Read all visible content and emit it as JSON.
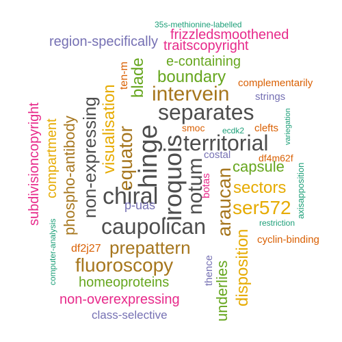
{
  "palette": {
    "gray": "#4d4d4d",
    "gold": "#e6ab02",
    "bronze": "#a6761d",
    "green": "#66a61e",
    "magenta": "#e7298a",
    "purple": "#7570b3",
    "orange": "#d95f02",
    "teal": "#1b9e77"
  },
  "words": {
    "w1": "35s-methionine-labelled",
    "w2": "frizzledsmoothened",
    "w3": "region-specifically",
    "w4": "traitscopyright",
    "w5": "e-containing",
    "w6": "ten-m",
    "w7": "blade",
    "w8": "boundary",
    "w9": "complementarily",
    "w10": "subdivisioncopyright",
    "w11": "compartment",
    "w12": "phospho-antibody",
    "w13": "non-expressing",
    "w14": "visualisation",
    "w15": "intervein",
    "w16": "strings",
    "w17": "equator",
    "w18": "separates",
    "w19": "variegation",
    "w20": "smoc",
    "w21": "ecdk2",
    "w22": "clefts",
    "w23": "hinge",
    "w24": "territorial",
    "w25": "chiral",
    "w26": "iroquois",
    "w27": "costal",
    "w28": "df4m62f",
    "w29": "notum",
    "w30": "capsule",
    "w31": "p-uas",
    "w32": "botas",
    "w33": "araucan",
    "w34": "sectors",
    "w35": "axisapposition",
    "w36": "ser572",
    "w37": "caupolican",
    "w38": "restriction",
    "w39": "computer-analysis",
    "w40": "df2j27",
    "w41": "prepattern",
    "w42": "cyclin-binding",
    "w43": "disposition",
    "w44": "fluoroscopy",
    "w45": "thence",
    "w46": "underlies",
    "w47": "homeoproteins",
    "w48": "non-overexpressing",
    "w49": "class-selective"
  }
}
